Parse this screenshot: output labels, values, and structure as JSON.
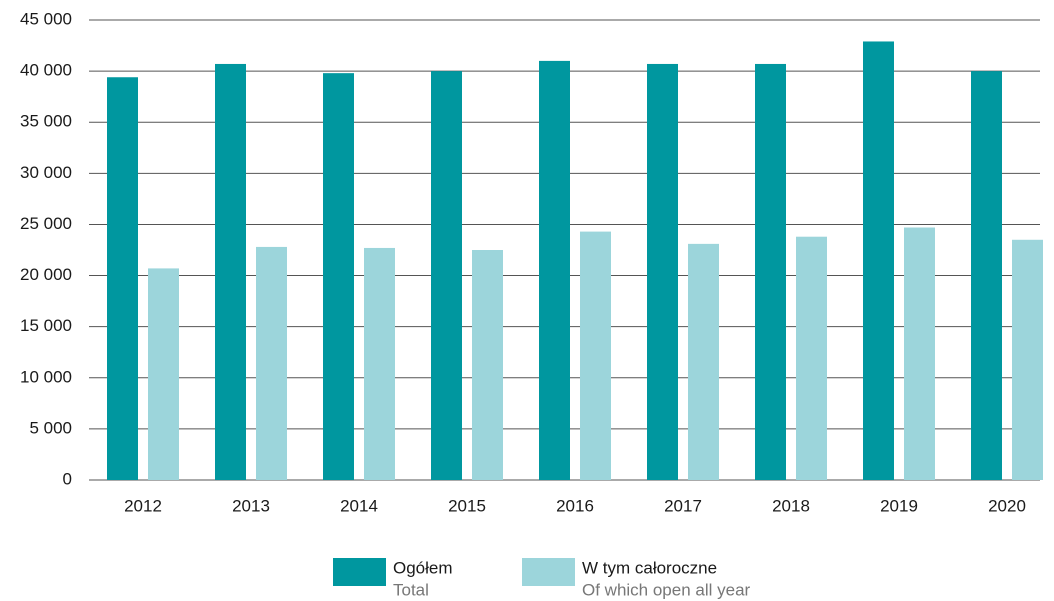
{
  "chart_data": {
    "type": "bar",
    "categories": [
      "2012",
      "2013",
      "2014",
      "2015",
      "2016",
      "2017",
      "2018",
      "2019",
      "2020"
    ],
    "series": [
      {
        "name": "Ogółem",
        "name_en": "Total",
        "color": "#00979f",
        "values": [
          39400,
          40700,
          39800,
          40000,
          41000,
          40700,
          40700,
          42900,
          40000
        ]
      },
      {
        "name": "W tym całoroczne",
        "name_en": "Of which open all year",
        "color": "#9cd5db",
        "values": [
          20700,
          22800,
          22700,
          22500,
          24300,
          23100,
          23800,
          24700,
          23500
        ]
      }
    ],
    "ylim": [
      0,
      45000
    ],
    "yticks": [
      0,
      {
        "value": 5000,
        "label": "5 000"
      },
      {
        "value": 10000,
        "label": "10 000"
      },
      {
        "value": 15000,
        "label": "15 000"
      },
      {
        "value": 20000,
        "label": "20 000"
      },
      {
        "value": 25000,
        "label": "25 000"
      },
      {
        "value": 30000,
        "label": "30 000"
      },
      {
        "value": 35000,
        "label": "35 000"
      },
      {
        "value": 40000,
        "label": "40 000"
      },
      {
        "value": 45000,
        "label": "45 000"
      }
    ],
    "grid": true
  }
}
